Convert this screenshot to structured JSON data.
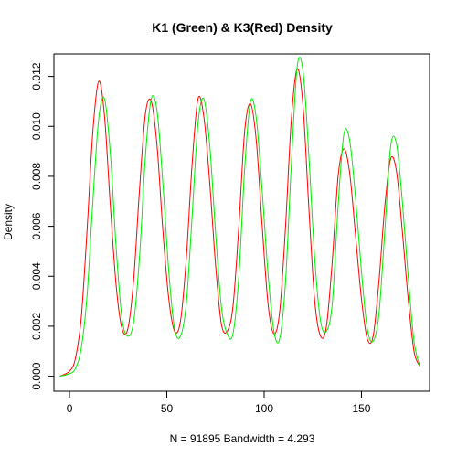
{
  "chart_data": {
    "type": "line",
    "title": "K1 (Green) & K3(Red) Density",
    "xlabel": "N = 91895   Bandwidth = 4.293",
    "ylabel": "Density",
    "xlim": [
      -8,
      185
    ],
    "ylim": [
      -0.0006,
      0.0129
    ],
    "x_ticks": [
      0,
      50,
      100,
      150
    ],
    "x_tick_labels": [
      "0",
      "50",
      "100",
      "150"
    ],
    "y_ticks": [
      0.0,
      0.002,
      0.004,
      0.006,
      0.008,
      0.01,
      0.012
    ],
    "y_tick_labels": [
      "0.000",
      "0.002",
      "0.004",
      "0.006",
      "0.008",
      "0.010",
      "0.012"
    ],
    "grid": false,
    "legend": "none",
    "series": [
      {
        "color": "#ff0000",
        "x": [
          -5,
          0,
          3,
          6,
          9,
          12,
          15,
          18,
          21,
          24,
          27,
          30,
          33,
          36,
          39,
          42,
          45,
          48,
          51,
          54,
          57,
          60,
          63,
          66,
          69,
          72,
          75,
          78,
          81,
          84,
          87,
          90,
          93,
          96,
          99,
          102,
          105,
          108,
          111,
          114,
          117,
          120,
          123,
          126,
          129,
          132,
          135,
          138,
          141,
          144,
          147,
          150,
          153,
          156,
          159,
          162,
          165,
          168,
          171,
          174,
          177,
          180
        ],
        "y": [
          0.0,
          0.0002,
          0.0007,
          0.0023,
          0.0058,
          0.0098,
          0.0118,
          0.0104,
          0.0068,
          0.0036,
          0.0019,
          0.0019,
          0.0039,
          0.0075,
          0.0105,
          0.011,
          0.0092,
          0.0058,
          0.0031,
          0.0018,
          0.0022,
          0.0047,
          0.0085,
          0.0111,
          0.0104,
          0.0078,
          0.0045,
          0.0021,
          0.0018,
          0.0028,
          0.006,
          0.0098,
          0.0109,
          0.0094,
          0.006,
          0.0029,
          0.0017,
          0.0026,
          0.006,
          0.0103,
          0.0123,
          0.0108,
          0.0067,
          0.003,
          0.0016,
          0.002,
          0.0046,
          0.008,
          0.0091,
          0.0081,
          0.0056,
          0.0031,
          0.0015,
          0.0016,
          0.0038,
          0.0068,
          0.0087,
          0.0082,
          0.0058,
          0.0031,
          0.001,
          0.0004
        ]
      },
      {
        "color": "#00ee00",
        "x": [
          -5,
          0,
          3,
          6,
          9,
          12,
          15,
          18,
          21,
          24,
          27,
          30,
          33,
          36,
          39,
          42,
          45,
          48,
          51,
          54,
          57,
          60,
          63,
          66,
          69,
          72,
          75,
          78,
          81,
          84,
          87,
          90,
          93,
          96,
          99,
          102,
          105,
          108,
          111,
          114,
          117,
          120,
          123,
          126,
          129,
          132,
          135,
          138,
          141,
          144,
          147,
          150,
          153,
          156,
          159,
          162,
          165,
          168,
          171,
          174,
          177,
          180
        ],
        "y": [
          0.0,
          0.0001,
          0.0003,
          0.0011,
          0.0032,
          0.007,
          0.0103,
          0.0111,
          0.0089,
          0.0051,
          0.0023,
          0.0016,
          0.0022,
          0.0048,
          0.0088,
          0.0111,
          0.0106,
          0.0077,
          0.0042,
          0.0019,
          0.0016,
          0.0029,
          0.0064,
          0.0101,
          0.0111,
          0.0093,
          0.0058,
          0.0028,
          0.0017,
          0.0017,
          0.004,
          0.0083,
          0.011,
          0.0103,
          0.0074,
          0.0041,
          0.0018,
          0.0015,
          0.0038,
          0.0085,
          0.0124,
          0.0122,
          0.0088,
          0.0047,
          0.0022,
          0.0018,
          0.0029,
          0.0068,
          0.0097,
          0.0094,
          0.0071,
          0.0042,
          0.0019,
          0.0014,
          0.0025,
          0.0058,
          0.0092,
          0.0093,
          0.007,
          0.004,
          0.0014,
          0.0004
        ]
      }
    ]
  }
}
